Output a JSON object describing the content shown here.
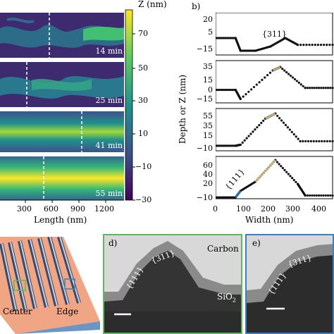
{
  "panel_a": {
    "maps": [
      {
        "time": "14 min"
      },
      {
        "time": "25 min"
      },
      {
        "time": "41 min"
      },
      {
        "time": "55 min"
      }
    ],
    "xlabel": "Length (nm)",
    "xticks": [
      "300",
      "600",
      "900",
      "1200"
    ],
    "colorbar": {
      "title": "Z (nm)",
      "ticks": [
        "70",
        "50",
        "30",
        "10",
        "−10",
        "−30"
      ]
    },
    "colors": {
      "low": "#440154",
      "mid": "#21918c",
      "high": "#fde725"
    }
  },
  "panel_b": {
    "label": "b)",
    "ylabel": "Depth or Z (nm)",
    "xlabel": "Width (nm)",
    "xticks": [
      "0",
      "100",
      "200",
      "300",
      "400"
    ],
    "facet_labels": {
      "top": "{311}",
      "side": "{111}"
    },
    "subplots": [
      {
        "yticks": [
          "20",
          "5",
          "−15"
        ]
      },
      {
        "yticks": [
          "35",
          "15",
          "0",
          "−15"
        ]
      },
      {
        "yticks": [
          "55",
          "35",
          "15",
          "−10"
        ]
      },
      {
        "yticks": [
          "60",
          "40",
          "20",
          "−10"
        ]
      }
    ],
    "colors": {
      "profile": "#111111",
      "facet311": "#c8b37a",
      "facet111": "#1f77b4"
    }
  },
  "panel_c": {
    "center_label": "Center",
    "edge_label": "Edge"
  },
  "panel_d": {
    "label": "d)",
    "carbon_label": "Carbon",
    "sio2_label": "SiO",
    "sio2_sub": "2",
    "facet_top": "{311}",
    "facet_side": "{111}",
    "border_color": "#5cb85c"
  },
  "panel_e": {
    "label": "e)",
    "facet_top": "{311}",
    "facet_side": "{111}",
    "border_color": "#3a7fc1"
  },
  "chart_data": [
    {
      "type": "line",
      "xlabel": "Width (nm)",
      "ylabel": "Depth or Z (nm)",
      "xlim": [
        0,
        470
      ],
      "series": [
        {
          "x": [
            0,
            80,
            100,
            160,
            220,
            280,
            330,
            470
          ],
          "y": [
            -2,
            -2,
            -17,
            -17,
            -12,
            -2,
            -10,
            -10
          ],
          "ylim": [
            -22,
            28
          ]
        },
        {
          "x": [
            0,
            80,
            100,
            230,
            260,
            360,
            470
          ],
          "y": [
            0,
            0,
            -14,
            30,
            35,
            3,
            3
          ],
          "ylim": [
            -20,
            45
          ]
        },
        {
          "x": [
            0,
            80,
            100,
            200,
            240,
            340,
            470
          ],
          "y": [
            -4,
            -4,
            -2,
            50,
            60,
            5,
            5
          ],
          "ylim": [
            -14,
            70
          ]
        },
        {
          "x": [
            0,
            80,
            100,
            160,
            240,
            330,
            360,
            470
          ],
          "y": [
            -9,
            -9,
            5,
            25,
            72,
            20,
            -5,
            -5
          ],
          "ylim": [
            -12,
            80
          ]
        }
      ]
    }
  ]
}
